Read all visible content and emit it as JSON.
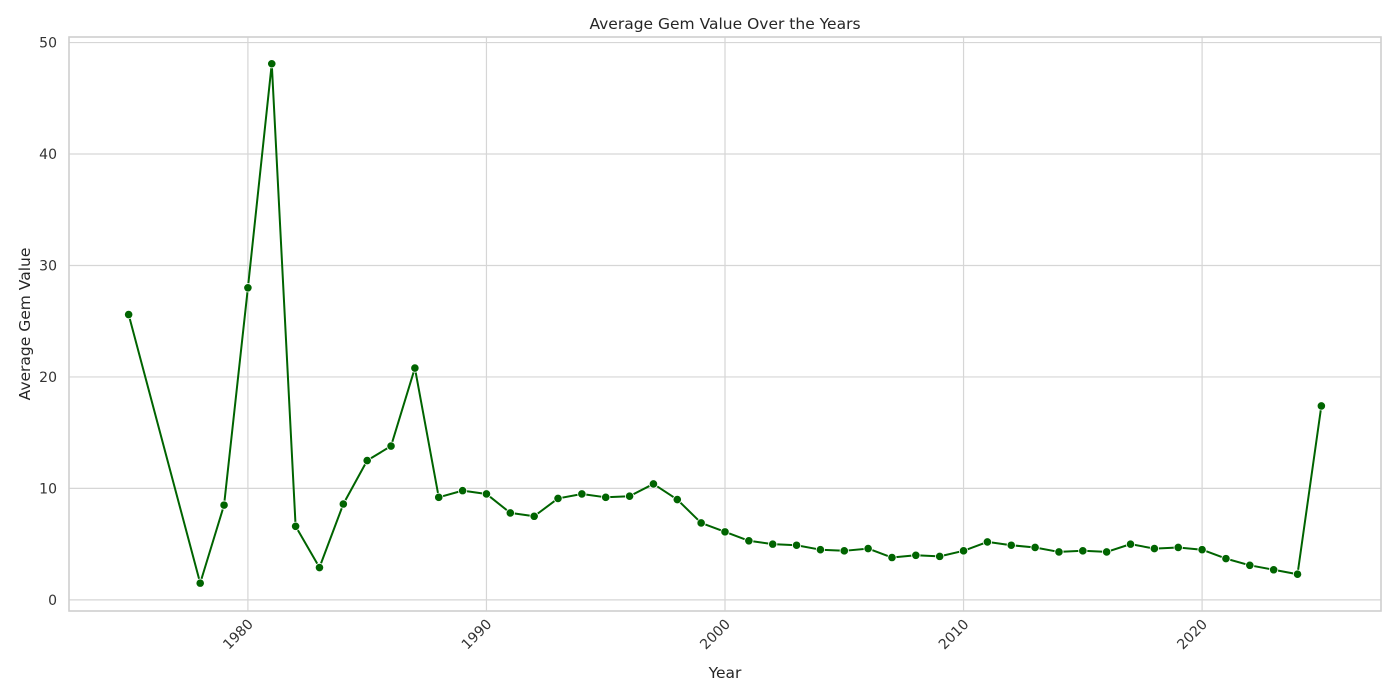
{
  "chart_data": {
    "type": "line",
    "title": "Average Gem Value Over the Years",
    "xlabel": "Year",
    "ylabel": "Average Gem Value",
    "xlim": [
      1972.5,
      2027.5
    ],
    "ylim": [
      -1,
      50.5
    ],
    "xticks": [
      1980,
      1990,
      2000,
      2010,
      2020
    ],
    "yticks": [
      0,
      10,
      20,
      30,
      40,
      50
    ],
    "grid": true,
    "legend": "none",
    "color": "#006400",
    "x": [
      1975,
      1978,
      1979,
      1980,
      1981,
      1982,
      1983,
      1984,
      1985,
      1986,
      1987,
      1988,
      1989,
      1990,
      1991,
      1992,
      1993,
      1994,
      1995,
      1996,
      1997,
      1998,
      1999,
      2000,
      2001,
      2002,
      2003,
      2004,
      2005,
      2006,
      2007,
      2008,
      2009,
      2010,
      2011,
      2012,
      2013,
      2014,
      2015,
      2016,
      2017,
      2018,
      2019,
      2020,
      2021,
      2022,
      2023,
      2024,
      2025
    ],
    "y": [
      25.6,
      1.5,
      8.5,
      28.0,
      48.1,
      6.6,
      2.9,
      8.6,
      12.5,
      13.8,
      20.8,
      9.2,
      9.8,
      9.5,
      7.8,
      7.5,
      9.1,
      9.5,
      9.2,
      9.3,
      10.4,
      9.0,
      6.9,
      6.1,
      5.3,
      5.0,
      4.9,
      4.5,
      4.4,
      4.6,
      3.8,
      4.0,
      3.9,
      4.4,
      5.2,
      4.9,
      4.7,
      4.3,
      4.4,
      4.3,
      5.0,
      4.6,
      4.7,
      4.5,
      3.7,
      3.1,
      2.7,
      2.3,
      17.4
    ]
  }
}
